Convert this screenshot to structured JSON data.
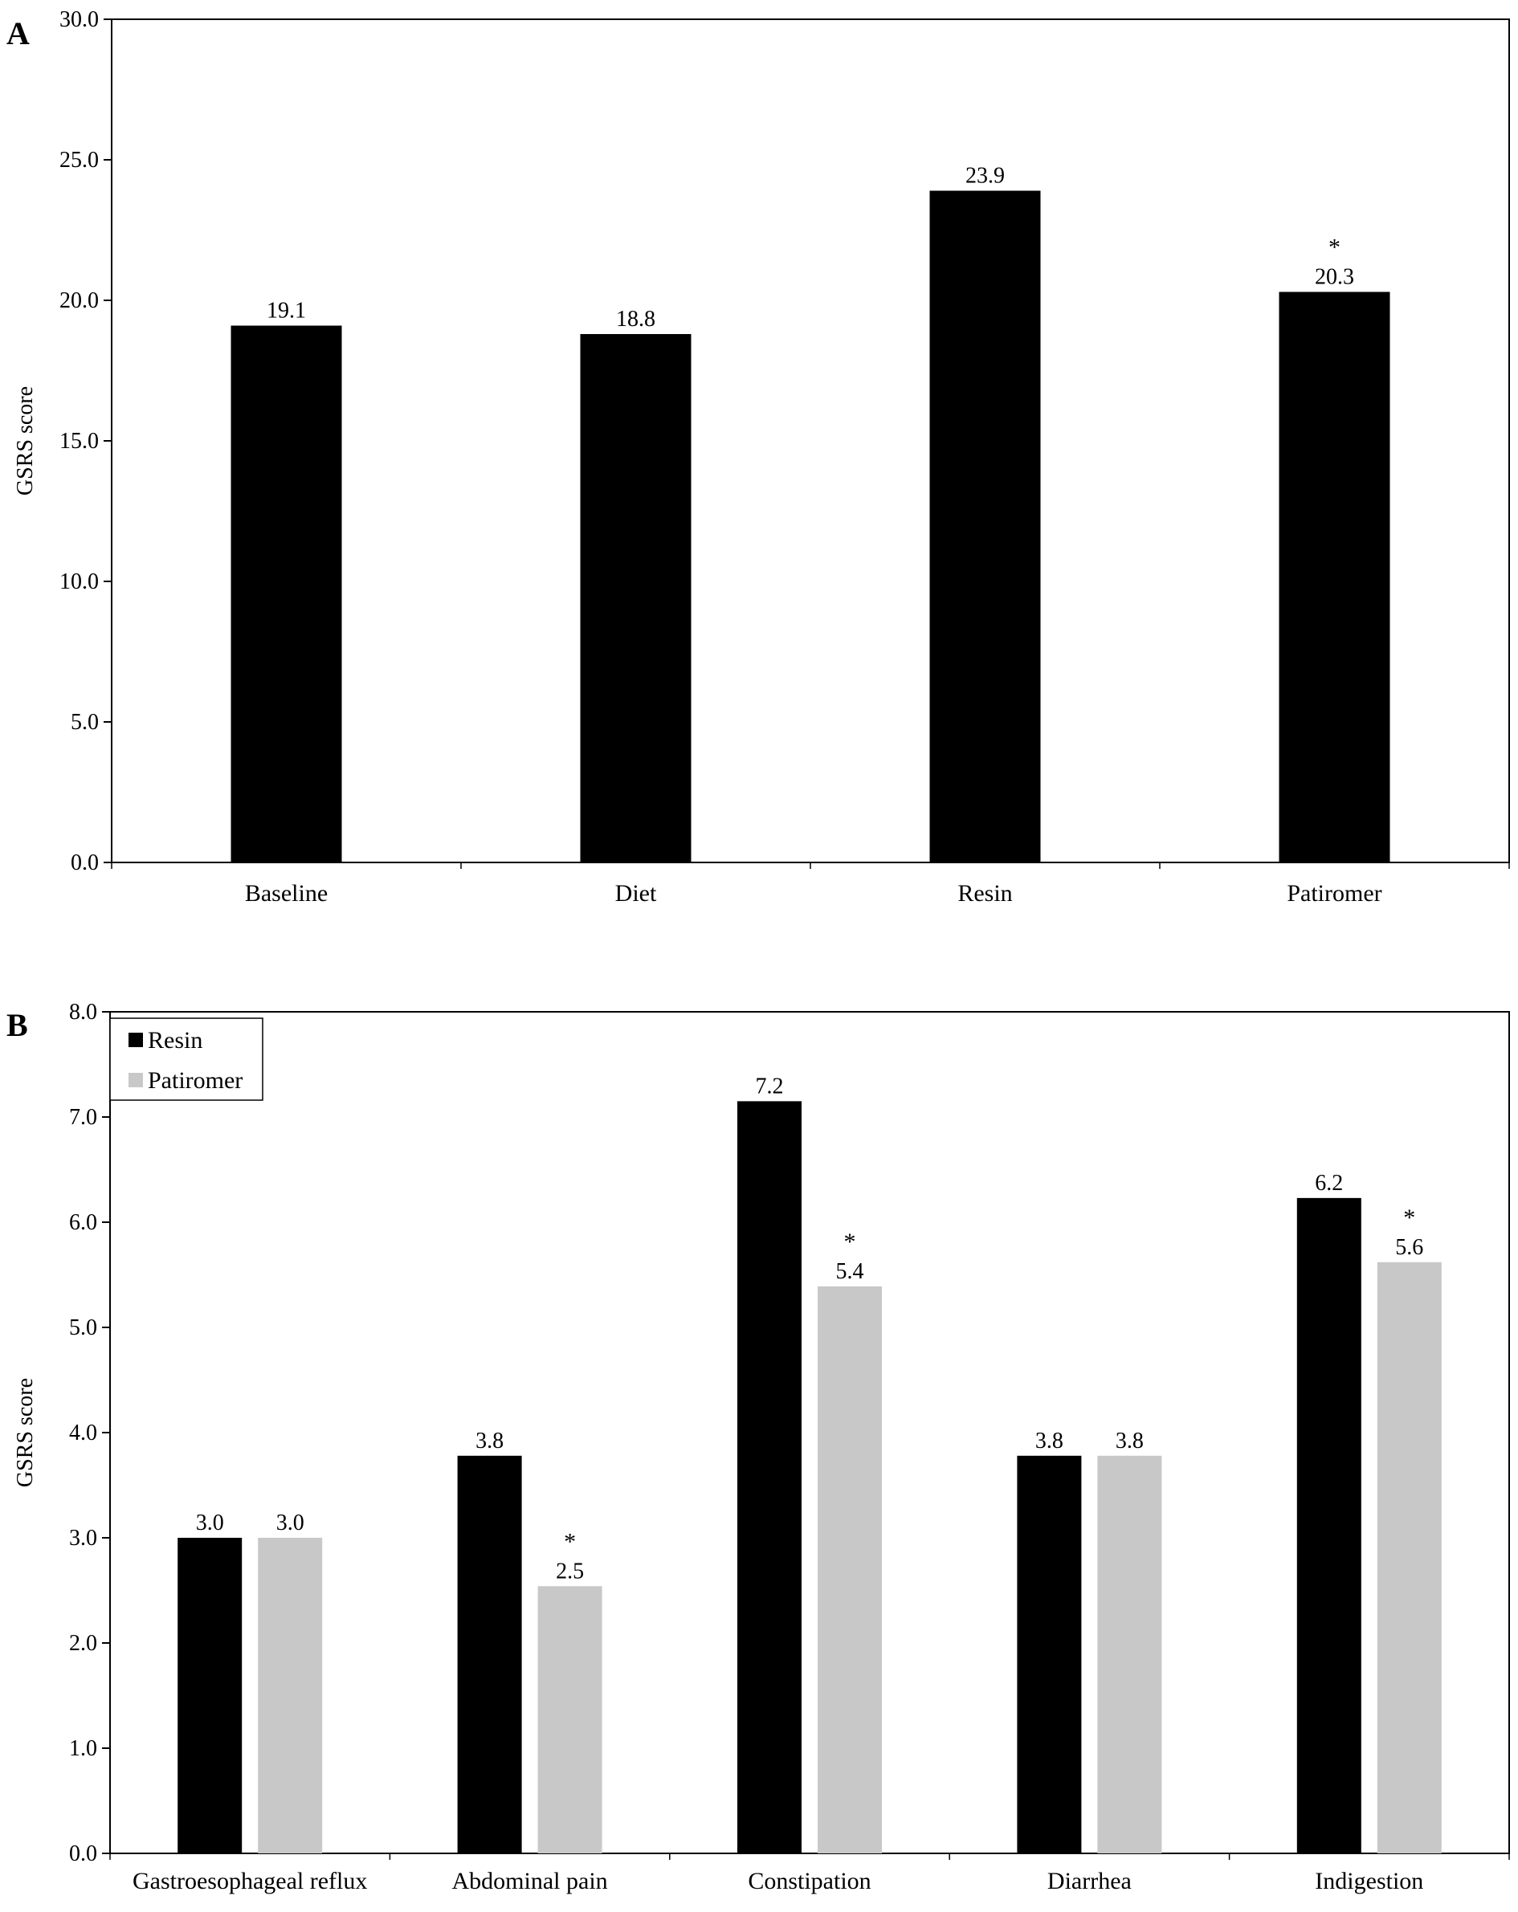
{
  "chart_data": [
    {
      "type": "bar",
      "panel_label": "A",
      "ylabel": "GSRS score",
      "ylim": [
        0,
        30
      ],
      "yticks": [
        "0.0",
        "5.0",
        "10.0",
        "15.0",
        "20.0",
        "25.0",
        "30.0"
      ],
      "categories": [
        "Baseline",
        "Diet",
        "Resin",
        "Patiromer"
      ],
      "series": [
        {
          "values": [
            19.1,
            18.8,
            23.9,
            20.3
          ],
          "labels": [
            "19.1",
            "18.8",
            "23.9",
            "20.3"
          ],
          "significance": [
            "",
            "",
            "",
            "*"
          ],
          "color": "#000000"
        }
      ],
      "grid": false
    },
    {
      "type": "bar",
      "panel_label": "B",
      "ylabel": "GSRS score",
      "ylim": [
        0,
        8
      ],
      "yticks": [
        "0.0",
        "1.0",
        "2.0",
        "3.0",
        "4.0",
        "5.0",
        "6.0",
        "7.0",
        "8.0"
      ],
      "categories": [
        "Gastroesophageal reflux",
        "Abdominal pain",
        "Constipation",
        "Diarrhea",
        "Indigestion"
      ],
      "series": [
        {
          "name": "Resin",
          "values": [
            3.0,
            3.78,
            7.15,
            3.78,
            6.23
          ],
          "labels": [
            "3.0",
            "3.8",
            "7.2",
            "3.8",
            "6.2"
          ],
          "significance": [
            "",
            "",
            "",
            "",
            ""
          ],
          "color": "#000000"
        },
        {
          "name": "Patiromer",
          "values": [
            3.0,
            2.54,
            5.39,
            3.78,
            5.62
          ],
          "labels": [
            "3.0",
            "2.5",
            "5.4",
            "3.8",
            "5.6"
          ],
          "significance": [
            "",
            "*",
            "*",
            "",
            "*"
          ],
          "color": "#c8c8c8"
        }
      ],
      "legend_position": "top-left",
      "grid": false
    }
  ]
}
